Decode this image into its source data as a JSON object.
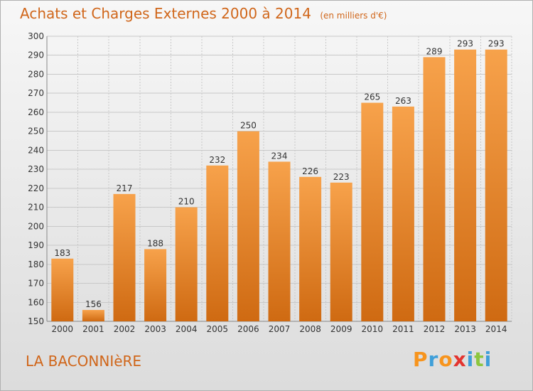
{
  "title": "Achats et Charges Externes 2000 à 2014",
  "unit": "(en milliers d'€)",
  "commune": "LA BACONNIèRE",
  "logo": {
    "letters": [
      "P",
      "r",
      "o",
      "x",
      "i",
      "t",
      "i"
    ],
    "colors": [
      "#f7941d",
      "#3f9fd9",
      "#f7941d",
      "#e3342f",
      "#3f9fd9",
      "#8cc63f",
      "#3f9fd9"
    ]
  },
  "chart_data": {
    "type": "bar",
    "categories": [
      "2000",
      "2001",
      "2002",
      "2003",
      "2004",
      "2005",
      "2006",
      "2007",
      "2008",
      "2009",
      "2010",
      "2011",
      "2012",
      "2013",
      "2014"
    ],
    "values": [
      183,
      156,
      217,
      188,
      210,
      232,
      250,
      234,
      226,
      223,
      265,
      263,
      289,
      293,
      293
    ],
    "ylim": [
      150,
      300
    ],
    "yticks": [
      150,
      160,
      170,
      180,
      190,
      200,
      210,
      220,
      230,
      240,
      250,
      260,
      270,
      280,
      290,
      300
    ],
    "grid": true,
    "bar_color": "#f39a3c"
  }
}
